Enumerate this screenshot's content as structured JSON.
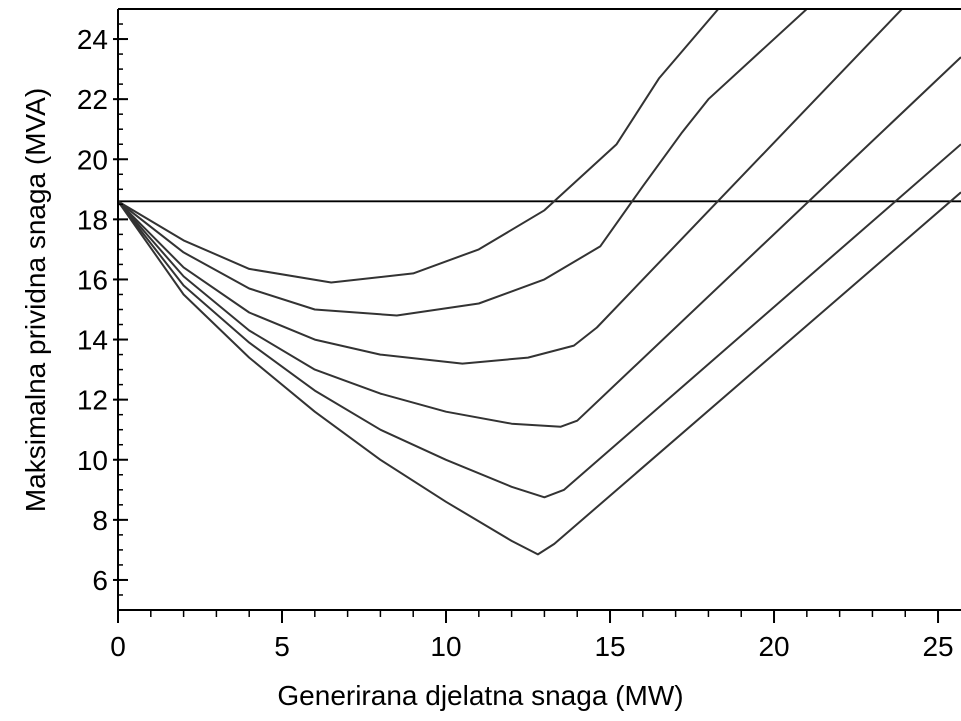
{
  "chart_data": {
    "type": "line",
    "title": "",
    "xlabel": "Generirana djelatna snaga (MW)",
    "ylabel": "Maksimalna prividna snaga (MVA)",
    "xlim": [
      0,
      25.7
    ],
    "ylim": [
      5,
      25
    ],
    "xticks": [
      "0",
      "5",
      "10",
      "15",
      "20",
      "25"
    ],
    "yticks": [
      "6",
      "8",
      "10",
      "12",
      "14",
      "16",
      "18",
      "20",
      "22",
      "24"
    ],
    "x_minor_step": 1,
    "y_minor_step": 0.5,
    "line_color": "#333333",
    "horizontal_line": {
      "y": 18.6
    },
    "series": [
      {
        "points": [
          [
            0,
            18.6
          ],
          [
            2,
            17.3
          ],
          [
            4,
            16.35
          ],
          [
            6.5,
            15.9
          ],
          [
            9,
            16.2
          ],
          [
            11,
            17
          ],
          [
            13,
            18.3
          ],
          [
            15.2,
            20.5
          ],
          [
            16.5,
            22.7
          ],
          [
            18.3,
            25
          ]
        ]
      },
      {
        "points": [
          [
            0,
            18.6
          ],
          [
            2,
            16.9
          ],
          [
            4,
            15.7
          ],
          [
            6,
            15
          ],
          [
            8.5,
            14.8
          ],
          [
            11,
            15.2
          ],
          [
            13,
            16
          ],
          [
            14.7,
            17.1
          ],
          [
            16,
            19.1
          ],
          [
            17.2,
            20.9
          ],
          [
            18,
            22
          ],
          [
            21,
            25
          ]
        ]
      },
      {
        "points": [
          [
            0,
            18.6
          ],
          [
            2,
            16.4
          ],
          [
            4,
            14.9
          ],
          [
            6,
            14
          ],
          [
            8,
            13.5
          ],
          [
            10.5,
            13.2
          ],
          [
            12.5,
            13.4
          ],
          [
            13.9,
            13.8
          ],
          [
            14.6,
            14.4
          ],
          [
            23.9,
            25
          ]
        ]
      },
      {
        "points": [
          [
            0,
            18.6
          ],
          [
            2,
            16.1
          ],
          [
            4,
            14.3
          ],
          [
            6,
            13
          ],
          [
            8,
            12.2
          ],
          [
            10,
            11.6
          ],
          [
            12,
            11.2
          ],
          [
            13.5,
            11.1
          ],
          [
            14,
            11.3
          ],
          [
            25.7,
            23.4
          ]
        ]
      },
      {
        "points": [
          [
            0,
            18.6
          ],
          [
            2,
            15.8
          ],
          [
            4,
            13.9
          ],
          [
            6,
            12.3
          ],
          [
            8,
            11
          ],
          [
            10,
            10
          ],
          [
            12,
            9.1
          ],
          [
            13,
            8.75
          ],
          [
            13.6,
            9
          ],
          [
            25.7,
            20.5
          ]
        ]
      },
      {
        "points": [
          [
            0,
            18.6
          ],
          [
            2,
            15.5
          ],
          [
            4,
            13.4
          ],
          [
            6,
            11.6
          ],
          [
            8,
            10
          ],
          [
            10,
            8.6
          ],
          [
            12,
            7.3
          ],
          [
            12.8,
            6.85
          ],
          [
            13.3,
            7.2
          ],
          [
            25.7,
            18.9
          ]
        ]
      }
    ]
  }
}
